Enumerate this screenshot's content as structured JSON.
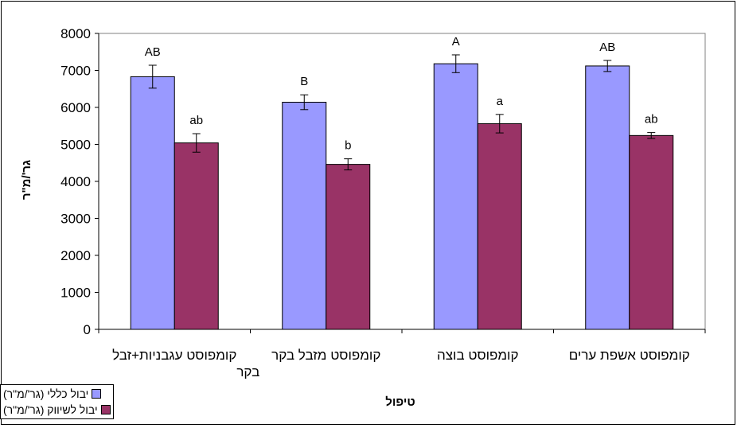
{
  "chart_data": {
    "type": "bar",
    "title": "",
    "xlabel": "טיפול",
    "ylabel": "גר'/מ\"ר",
    "ylim": [
      0,
      8000
    ],
    "yticks": [
      "0",
      "1000",
      "2000",
      "3000",
      "4000",
      "5000",
      "6000",
      "7000",
      "8000"
    ],
    "categories": [
      [
        "קומפוסט עגבניות+זבל",
        "בקר"
      ],
      [
        "קומפוסט מזבל בקר"
      ],
      [
        "קומפוסט בוצה"
      ],
      [
        "קומפוסט אשפת ערים"
      ]
    ],
    "series": [
      {
        "name": "יבול כללי (גר'/מ\"ר)",
        "color": "#9999ff",
        "values": [
          6830,
          6140,
          7180,
          7120
        ],
        "errors": [
          310,
          200,
          240,
          150
        ],
        "labels": [
          "AB",
          "B",
          "A",
          "AB"
        ]
      },
      {
        "name": "יבול לשיווק (גר'/מ\"ר)",
        "color": "#993366",
        "values": [
          5040,
          4460,
          5560,
          5240
        ],
        "errors": [
          250,
          150,
          250,
          80
        ],
        "labels": [
          "ab",
          "b",
          "a",
          "ab"
        ]
      }
    ],
    "grid": false,
    "legend_position": "bottom-left"
  }
}
